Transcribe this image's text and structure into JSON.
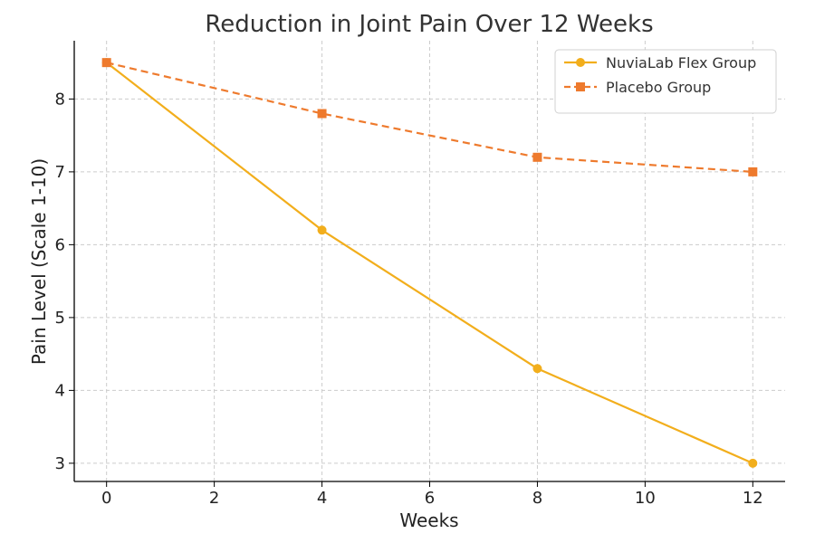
{
  "chart_data": {
    "type": "line",
    "title": "Reduction in Joint Pain Over 12 Weeks",
    "xlabel": "Weeks",
    "ylabel": "Pain Level (Scale 1-10)",
    "xlim": [
      -0.6,
      12.6
    ],
    "ylim": [
      2.75,
      8.8
    ],
    "xticks": [
      0,
      2,
      4,
      6,
      8,
      10,
      12
    ],
    "yticks": [
      3,
      4,
      5,
      6,
      7,
      8
    ],
    "grid": true,
    "legend_position": "top-right",
    "x": [
      0,
      4,
      8,
      12
    ],
    "series": [
      {
        "name": "NuviaLab Flex Group",
        "values": [
          8.5,
          6.2,
          4.3,
          3.0
        ],
        "color": "#F2AE1C",
        "marker": "circle",
        "line_style": "solid"
      },
      {
        "name": "Placebo Group",
        "values": [
          8.5,
          7.8,
          7.2,
          7.0
        ],
        "color": "#EE7A2D",
        "marker": "square",
        "line_style": "dashed"
      }
    ]
  }
}
